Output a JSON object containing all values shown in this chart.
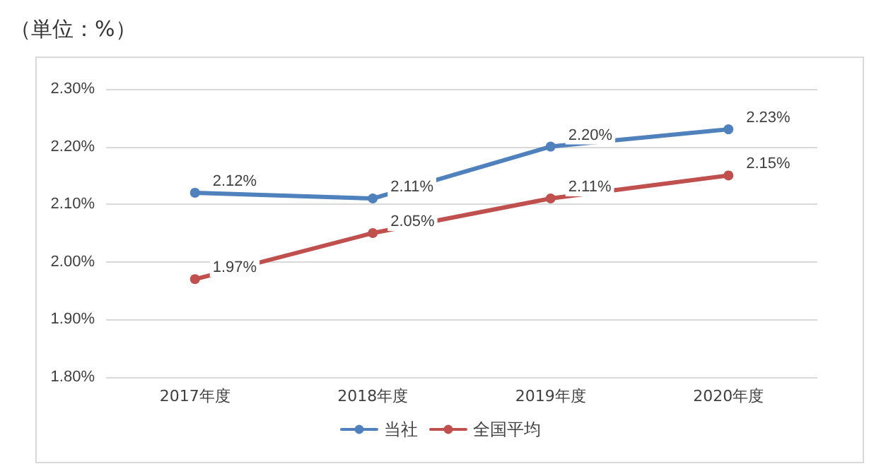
{
  "chart_data": {
    "type": "line",
    "title": "（単位：%）",
    "categories": [
      "2017年度",
      "2018年度",
      "2019年度",
      "2020年度"
    ],
    "series": [
      {
        "name": "当社",
        "color": "#4f81bd",
        "values": [
          2.12,
          2.11,
          2.2,
          2.23
        ],
        "value_labels": [
          "2.12%",
          "2.11%",
          "2.20%",
          "2.23%"
        ]
      },
      {
        "name": "全国平均",
        "color": "#c0504d",
        "values": [
          1.97,
          2.05,
          2.11,
          2.15
        ],
        "value_labels": [
          "1.97%",
          "2.05%",
          "2.11%",
          "2.15%"
        ]
      }
    ],
    "ylim": [
      1.8,
      2.3
    ],
    "yticks": [
      {
        "value": 1.8,
        "label": "1.80%"
      },
      {
        "value": 1.9,
        "label": "1.90%"
      },
      {
        "value": 2.0,
        "label": "2.00%"
      },
      {
        "value": 2.1,
        "label": "2.10%"
      },
      {
        "value": 2.2,
        "label": "2.20%"
      },
      {
        "value": 2.3,
        "label": "2.30%"
      }
    ],
    "grid": "y",
    "legend": "bottom",
    "marker": "circle",
    "line_style": "solid"
  }
}
